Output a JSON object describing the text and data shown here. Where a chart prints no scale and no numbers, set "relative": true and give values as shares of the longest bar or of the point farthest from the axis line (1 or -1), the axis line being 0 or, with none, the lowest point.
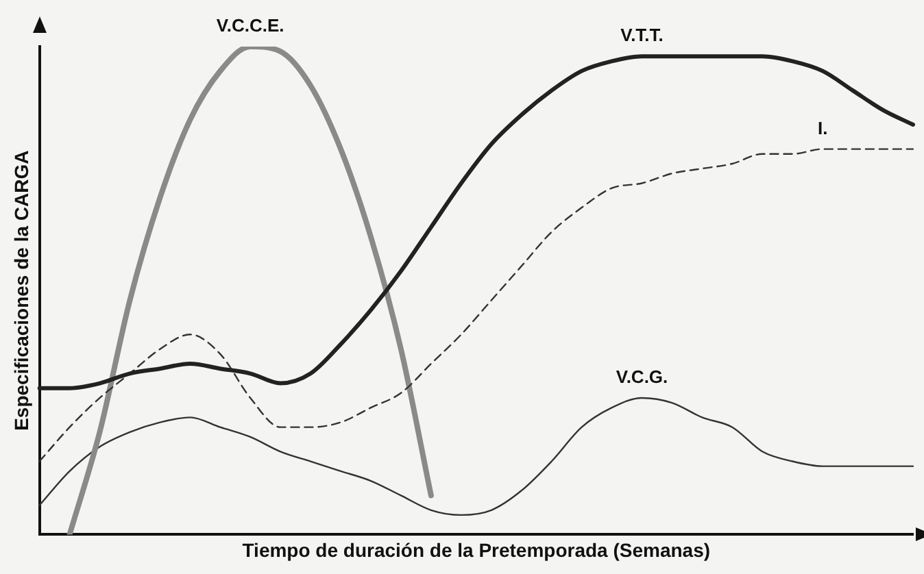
{
  "chart_data": {
    "type": "line",
    "relative": true,
    "xlabel": "Tiempo de duración de la Pretemporada (Semanas)",
    "ylabel": "Especificaciones de la CARGA",
    "legend": false,
    "grid": false,
    "marker": "none",
    "categories": [
      null,
      null,
      null,
      null,
      null,
      null,
      null,
      null,
      null,
      null,
      null,
      null,
      null,
      null,
      null,
      null,
      null,
      null,
      null,
      null,
      null,
      null,
      null,
      null,
      null,
      null,
      null,
      null,
      null,
      null
    ],
    "series": [
      {
        "name": "V.T.T.",
        "color": "#222222",
        "line_style": "solid",
        "values": [
          0.3,
          0.3,
          0.31,
          0.33,
          0.34,
          0.35,
          0.34,
          0.33,
          0.31,
          0.33,
          0.39,
          0.46,
          0.54,
          0.63,
          0.72,
          0.8,
          0.86,
          0.91,
          0.95,
          0.97,
          0.98,
          0.98,
          0.98,
          0.98,
          0.98,
          0.97,
          0.95,
          0.91,
          0.87,
          0.84
        ]
      },
      {
        "name": "I.",
        "color": "#333333",
        "line_style": "dashed",
        "values": [
          0.15,
          0.22,
          0.28,
          0.33,
          0.38,
          0.41,
          0.37,
          0.28,
          0.22,
          0.22,
          0.23,
          0.26,
          0.29,
          0.35,
          0.41,
          0.48,
          0.55,
          0.62,
          0.67,
          0.71,
          0.72,
          0.74,
          0.75,
          0.76,
          0.78,
          0.78,
          0.79,
          0.79,
          0.79,
          0.79
        ]
      },
      {
        "name": "V.C.C.E.",
        "color": "#8a8a8a",
        "line_style": "solid",
        "values": [
          null,
          0,
          0.21,
          0.48,
          0.69,
          0.85,
          0.95,
          1.0,
          0.99,
          0.92,
          0.79,
          0.61,
          0.38,
          0.08,
          null,
          null,
          null,
          null,
          null,
          null,
          null,
          null,
          null,
          null,
          null,
          null,
          null,
          null,
          null,
          null
        ]
      },
      {
        "name": "V.C.G.",
        "color": "#333333",
        "line_style": "solid",
        "values": [
          0.06,
          0.13,
          0.18,
          0.21,
          0.23,
          0.24,
          0.22,
          0.2,
          0.17,
          0.15,
          0.13,
          0.11,
          0.08,
          0.05,
          0.04,
          0.05,
          0.09,
          0.15,
          0.22,
          0.26,
          0.28,
          0.27,
          0.24,
          0.22,
          0.17,
          0.15,
          0.14,
          0.14,
          0.14,
          0.14
        ]
      }
    ]
  }
}
